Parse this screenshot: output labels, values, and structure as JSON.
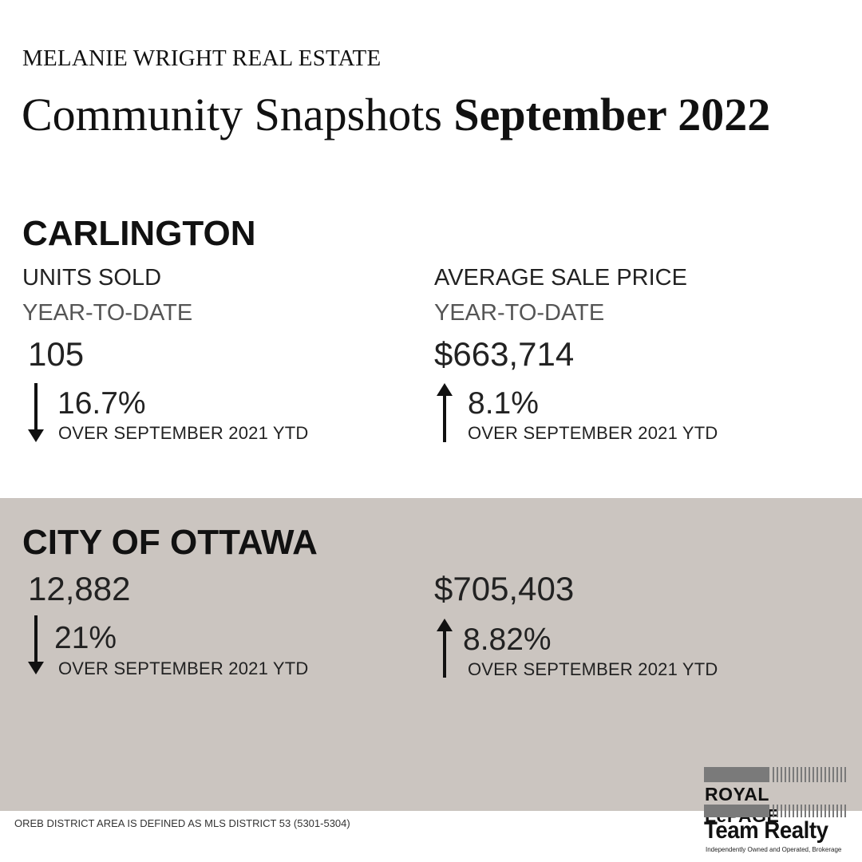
{
  "header": {
    "brand": "MELANIE WRIGHT REAL ESTATE",
    "title_light": "Community Snapshots",
    "title_bold": "September 2022"
  },
  "carlington": {
    "heading": "CARLINGTON",
    "units": {
      "label": "UNITS SOLD",
      "period": "YEAR-TO-DATE",
      "value": "105",
      "change": "16.7%",
      "direction": "down",
      "comparison": "OVER SEPTEMBER 2021 YTD"
    },
    "price": {
      "label": "AVERAGE SALE PRICE",
      "period": "YEAR-TO-DATE",
      "value": "$663,714",
      "change": "8.1%",
      "direction": "up",
      "comparison": "OVER SEPTEMBER 2021 YTD"
    }
  },
  "ottawa": {
    "heading": "CITY OF OTTAWA",
    "units": {
      "value": "12,882",
      "change": "21%",
      "direction": "down",
      "comparison": "OVER SEPTEMBER 2021 YTD"
    },
    "price": {
      "value": "$705,403",
      "change": "8.82%",
      "direction": "up",
      "comparison": "OVER SEPTEMBER 2021 YTD"
    }
  },
  "footnote": "OREB DISTRICT AREA IS DEFINED AS MLS DISTRICT 53 (5301-5304)",
  "logo": {
    "line1": "ROYAL LePAGE",
    "line2": "Team Realty",
    "tagline": "Independently Owned and Operated, Brokerage"
  },
  "colors": {
    "band": "#cbc5c0",
    "text": "#111111"
  },
  "icons": {
    "down": "arrow-down-icon",
    "up": "arrow-up-icon"
  }
}
